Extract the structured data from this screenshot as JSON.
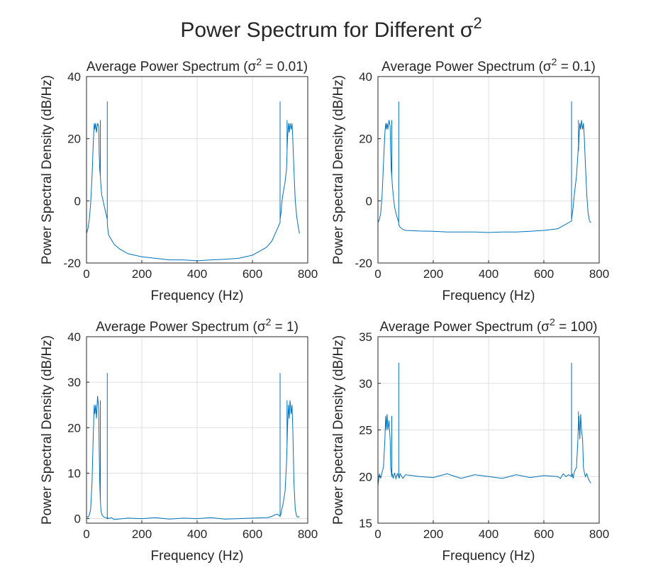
{
  "figure": {
    "title": "Power Spectrum for Different σ",
    "title_sup": "2"
  },
  "chart_data": [
    {
      "type": "line",
      "title": "Average Power Spectrum (σ",
      "title_sup": "2",
      "title_end": " = 0.01)",
      "xlabel": "Frequency (Hz)",
      "ylabel": "Power Spectral Density (dB/Hz)",
      "xlim": [
        0,
        800
      ],
      "ylim": [
        -20,
        40
      ],
      "xticks": [
        0,
        200,
        400,
        600,
        800
      ],
      "yticks": [
        -20,
        0,
        20,
        40
      ],
      "grid": true,
      "color": "#0072BD",
      "series": [
        {
          "x": [
            0,
            5,
            10,
            15,
            20,
            25,
            28,
            30,
            33,
            36,
            40,
            44,
            46,
            48,
            50,
            50,
            50,
            52,
            55,
            60,
            65,
            70,
            75,
            75,
            75,
            77,
            80,
            90,
            100,
            120,
            150,
            200,
            250,
            300,
            350,
            400,
            450,
            500,
            550,
            600,
            620,
            650,
            660,
            670,
            680,
            690,
            700,
            700,
            700,
            703,
            706,
            710,
            718,
            723,
            725,
            725,
            725,
            727,
            730,
            733,
            736,
            740,
            743,
            746,
            750,
            755,
            760,
            765,
            770
          ],
          "y": [
            -10.5,
            -9,
            -6,
            -1,
            8,
            20,
            25,
            23,
            25,
            22,
            25,
            24,
            15,
            10,
            8,
            26,
            8,
            5,
            2,
            0,
            -2,
            -4,
            -6,
            32,
            -7,
            -9,
            -11,
            -12.5,
            -14,
            -15.5,
            -17,
            -18,
            -18.5,
            -19,
            -19,
            -19.3,
            -19,
            -18.8,
            -18.5,
            -17.5,
            -16.5,
            -15,
            -14,
            -13,
            -11,
            -9,
            -7,
            32,
            -6,
            -4,
            -1,
            2,
            6,
            10,
            15,
            26,
            16,
            20,
            25,
            22,
            25,
            23,
            25,
            20,
            10,
            0,
            -5,
            -8,
            -10.5
          ]
        }
      ]
    },
    {
      "type": "line",
      "title": "Average Power Spectrum (σ",
      "title_sup": "2",
      "title_end": " = 0.1)",
      "xlabel": "Frequency (Hz)",
      "ylabel": "Power Spectral Density (dB/Hz)",
      "xlim": [
        0,
        800
      ],
      "ylim": [
        -20,
        40
      ],
      "xticks": [
        0,
        200,
        400,
        600,
        800
      ],
      "yticks": [
        -20,
        0,
        20,
        40
      ],
      "grid": true,
      "color": "#0072BD",
      "series": [
        {
          "x": [
            0,
            5,
            10,
            15,
            20,
            25,
            28,
            30,
            33,
            36,
            40,
            44,
            46,
            48,
            50,
            50,
            50,
            52,
            55,
            60,
            65,
            70,
            75,
            75,
            75,
            77,
            80,
            90,
            100,
            150,
            200,
            250,
            300,
            350,
            400,
            450,
            500,
            550,
            600,
            650,
            660,
            670,
            680,
            690,
            700,
            700,
            700,
            703,
            706,
            710,
            718,
            723,
            725,
            725,
            725,
            727,
            730,
            733,
            736,
            740,
            743,
            746,
            750,
            755,
            760,
            765,
            770
          ],
          "y": [
            -7,
            -6,
            -4,
            2,
            12,
            22,
            25,
            23,
            25,
            23,
            26,
            24,
            16,
            10,
            8,
            26,
            8,
            5,
            2,
            -2,
            -4,
            -5.5,
            -7,
            32,
            -7.5,
            -8,
            -8.5,
            -9.2,
            -9.5,
            -9.7,
            -9.8,
            -10,
            -10,
            -10,
            -10.2,
            -10,
            -10,
            -9.8,
            -9.5,
            -9,
            -8.5,
            -8,
            -7.5,
            -7,
            -6.5,
            32,
            -6,
            -4,
            -2,
            2,
            8,
            15,
            18,
            26,
            16,
            20,
            25,
            23,
            26,
            23,
            25,
            21,
            12,
            2,
            -4,
            -6.5,
            -7
          ]
        }
      ]
    },
    {
      "type": "line",
      "title": "Average Power Spectrum (σ",
      "title_sup": "2",
      "title_end": " = 1)",
      "xlabel": "Frequency (Hz)",
      "ylabel": "Power Spectral Density (dB/Hz)",
      "xlim": [
        0,
        800
      ],
      "ylim": [
        -1,
        40
      ],
      "xticks": [
        0,
        200,
        400,
        600,
        800
      ],
      "yticks": [
        0,
        10,
        20,
        30,
        40
      ],
      "grid": true,
      "color": "#0072BD",
      "series": [
        {
          "x": [
            0,
            5,
            10,
            15,
            20,
            25,
            28,
            30,
            33,
            36,
            40,
            44,
            46,
            48,
            50,
            50,
            50,
            52,
            55,
            60,
            65,
            70,
            75,
            75,
            75,
            77,
            80,
            90,
            100,
            150,
            200,
            250,
            300,
            350,
            400,
            450,
            500,
            550,
            600,
            650,
            660,
            670,
            680,
            690,
            700,
            700,
            700,
            703,
            706,
            710,
            718,
            723,
            725,
            725,
            725,
            727,
            730,
            733,
            736,
            740,
            743,
            746,
            750,
            755,
            760,
            765,
            770
          ],
          "y": [
            0.5,
            0.3,
            0.8,
            2,
            8,
            20,
            25,
            23,
            25,
            22,
            27,
            24,
            15,
            8,
            4,
            26,
            4,
            2,
            1,
            0.5,
            0.3,
            0.2,
            0,
            32,
            0,
            0.2,
            0,
            0.2,
            -0.2,
            0.1,
            0,
            0.2,
            -0.1,
            0.1,
            0,
            0.2,
            -0.1,
            0,
            0.1,
            0.2,
            0.3,
            0.5,
            0.8,
            1,
            0.5,
            32,
            0.5,
            1,
            2,
            3,
            6,
            12,
            16,
            26,
            16,
            20,
            25,
            22,
            26,
            23,
            25,
            20,
            8,
            2,
            0.5,
            0.3,
            0.5
          ]
        }
      ]
    },
    {
      "type": "line",
      "title": "Average Power Spectrum (σ",
      "title_sup": "2",
      "title_end": " = 100)",
      "xlabel": "Frequency (Hz)",
      "ylabel": "Power Spectral Density (dB/Hz)",
      "xlim": [
        0,
        800
      ],
      "ylim": [
        15,
        35
      ],
      "xticks": [
        0,
        200,
        400,
        600,
        800
      ],
      "yticks": [
        15,
        20,
        25,
        30,
        35
      ],
      "grid": true,
      "color": "#0072BD",
      "series": [
        {
          "x": [
            0,
            5,
            10,
            15,
            20,
            25,
            28,
            30,
            33,
            36,
            40,
            44,
            46,
            48,
            50,
            50,
            50,
            52,
            55,
            60,
            65,
            70,
            75,
            75,
            75,
            77,
            80,
            90,
            100,
            150,
            200,
            250,
            300,
            350,
            400,
            450,
            500,
            550,
            600,
            650,
            660,
            670,
            680,
            690,
            700,
            700,
            700,
            703,
            706,
            710,
            718,
            723,
            725,
            725,
            725,
            727,
            730,
            733,
            736,
            740,
            743,
            746,
            750,
            755,
            760,
            765,
            770
          ],
          "y": [
            19,
            20.3,
            19.8,
            20.5,
            21,
            24,
            26.5,
            25,
            26.7,
            25,
            26,
            24,
            21,
            20.5,
            20,
            26.5,
            20,
            20.3,
            19.8,
            20.4,
            19.8,
            20.3,
            20,
            32.2,
            20,
            19.8,
            20.3,
            19.8,
            20.2,
            20,
            19.9,
            20.3,
            19.8,
            20.2,
            20,
            19.8,
            20.2,
            19.9,
            20.1,
            20,
            19.8,
            20.3,
            20,
            20.2,
            20,
            32.2,
            20,
            20.3,
            19.8,
            20.5,
            21,
            24,
            26,
            27,
            25,
            26.5,
            24,
            26.7,
            25,
            24,
            21,
            20.5,
            20,
            20.3,
            19.8,
            19.5,
            19.3
          ]
        }
      ]
    }
  ]
}
